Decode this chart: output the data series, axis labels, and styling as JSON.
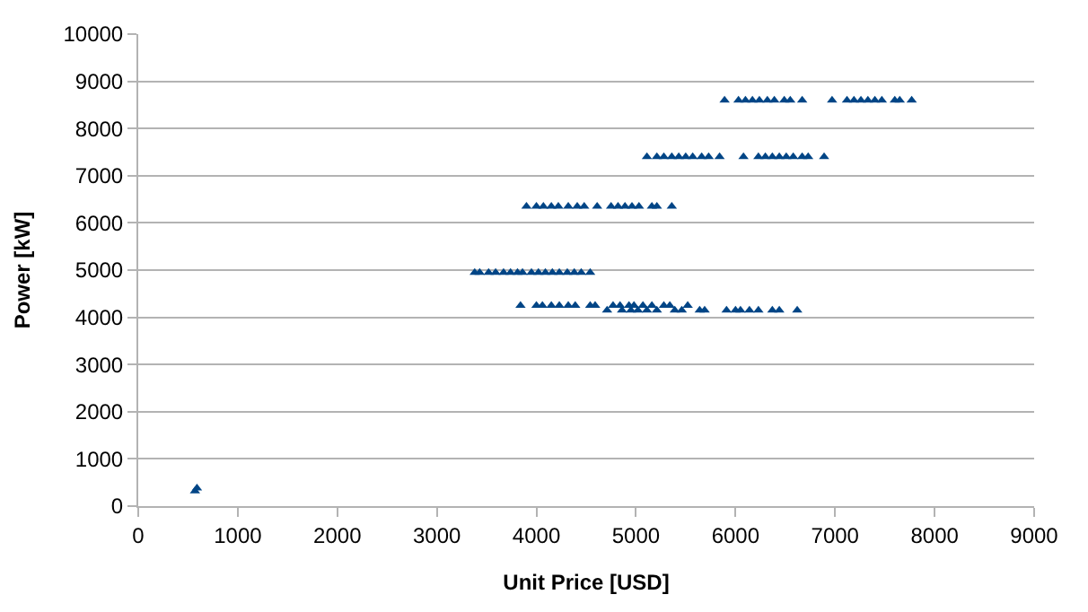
{
  "chart_data": {
    "type": "scatter",
    "xlabel": "Unit Price [USD]",
    "ylabel": "Power [kW]",
    "marker": "triangle",
    "grid": "y",
    "legend": false,
    "xlim": [
      0,
      9000
    ],
    "xticks": [
      0,
      1000,
      2000,
      3000,
      4000,
      5000,
      6000,
      7000,
      8000,
      9000
    ],
    "ylim": [
      0,
      10000
    ],
    "yticks": [
      0,
      1000,
      2000,
      3000,
      4000,
      5000,
      6000,
      7000,
      8000,
      9000,
      10000
    ],
    "series": [
      {
        "color": "#004586",
        "x": [
          570,
          590,
          5890,
          6030,
          6100,
          6170,
          6240,
          6320,
          6390,
          6490,
          6550,
          6670,
          6970,
          7120,
          7190,
          7260,
          7330,
          7400,
          7470,
          7600,
          7650,
          7770,
          5110,
          5210,
          5280,
          5360,
          5430,
          5500,
          5570,
          5660,
          5730,
          5840,
          6080,
          6230,
          6300,
          6370,
          6440,
          6510,
          6580,
          6670,
          6730,
          6890,
          3900,
          4000,
          4070,
          4150,
          4220,
          4320,
          4410,
          4480,
          4610,
          4750,
          4820,
          4890,
          4960,
          5030,
          5160,
          5210,
          5360,
          3380,
          3430,
          3520,
          3590,
          3670,
          3740,
          3810,
          3860,
          3950,
          4020,
          4090,
          4160,
          4230,
          4310,
          4380,
          4450,
          4540,
          3840,
          4000,
          4060,
          4150,
          4230,
          4320,
          4390,
          4540,
          4590,
          4770,
          4840,
          4930,
          4980,
          5070,
          5160,
          5280,
          5340,
          5520,
          4710,
          4860,
          4950,
          5020,
          5110,
          5210,
          5390,
          5460,
          5640,
          5690,
          5910,
          6000,
          6050,
          6140,
          6230,
          6370,
          6440,
          6620
        ],
        "values": [
          320,
          380,
          8600,
          8600,
          8600,
          8600,
          8600,
          8600,
          8600,
          8600,
          8600,
          8600,
          8600,
          8600,
          8600,
          8600,
          8600,
          8600,
          8600,
          8600,
          8600,
          8600,
          7400,
          7400,
          7400,
          7400,
          7400,
          7400,
          7400,
          7400,
          7400,
          7400,
          7400,
          7400,
          7400,
          7400,
          7400,
          7400,
          7400,
          7400,
          7400,
          7400,
          6350,
          6350,
          6350,
          6350,
          6350,
          6350,
          6350,
          6350,
          6350,
          6350,
          6350,
          6350,
          6350,
          6350,
          6350,
          6350,
          6350,
          4950,
          4950,
          4950,
          4950,
          4950,
          4950,
          4950,
          4950,
          4950,
          4950,
          4950,
          4950,
          4950,
          4950,
          4950,
          4950,
          4950,
          4250,
          4250,
          4250,
          4250,
          4250,
          4250,
          4250,
          4250,
          4250,
          4250,
          4250,
          4250,
          4250,
          4250,
          4250,
          4250,
          4250,
          4250,
          4150,
          4150,
          4150,
          4150,
          4150,
          4150,
          4150,
          4150,
          4150,
          4150,
          4150,
          4150,
          4150,
          4150,
          4150,
          4150,
          4150,
          4150
        ]
      }
    ]
  }
}
